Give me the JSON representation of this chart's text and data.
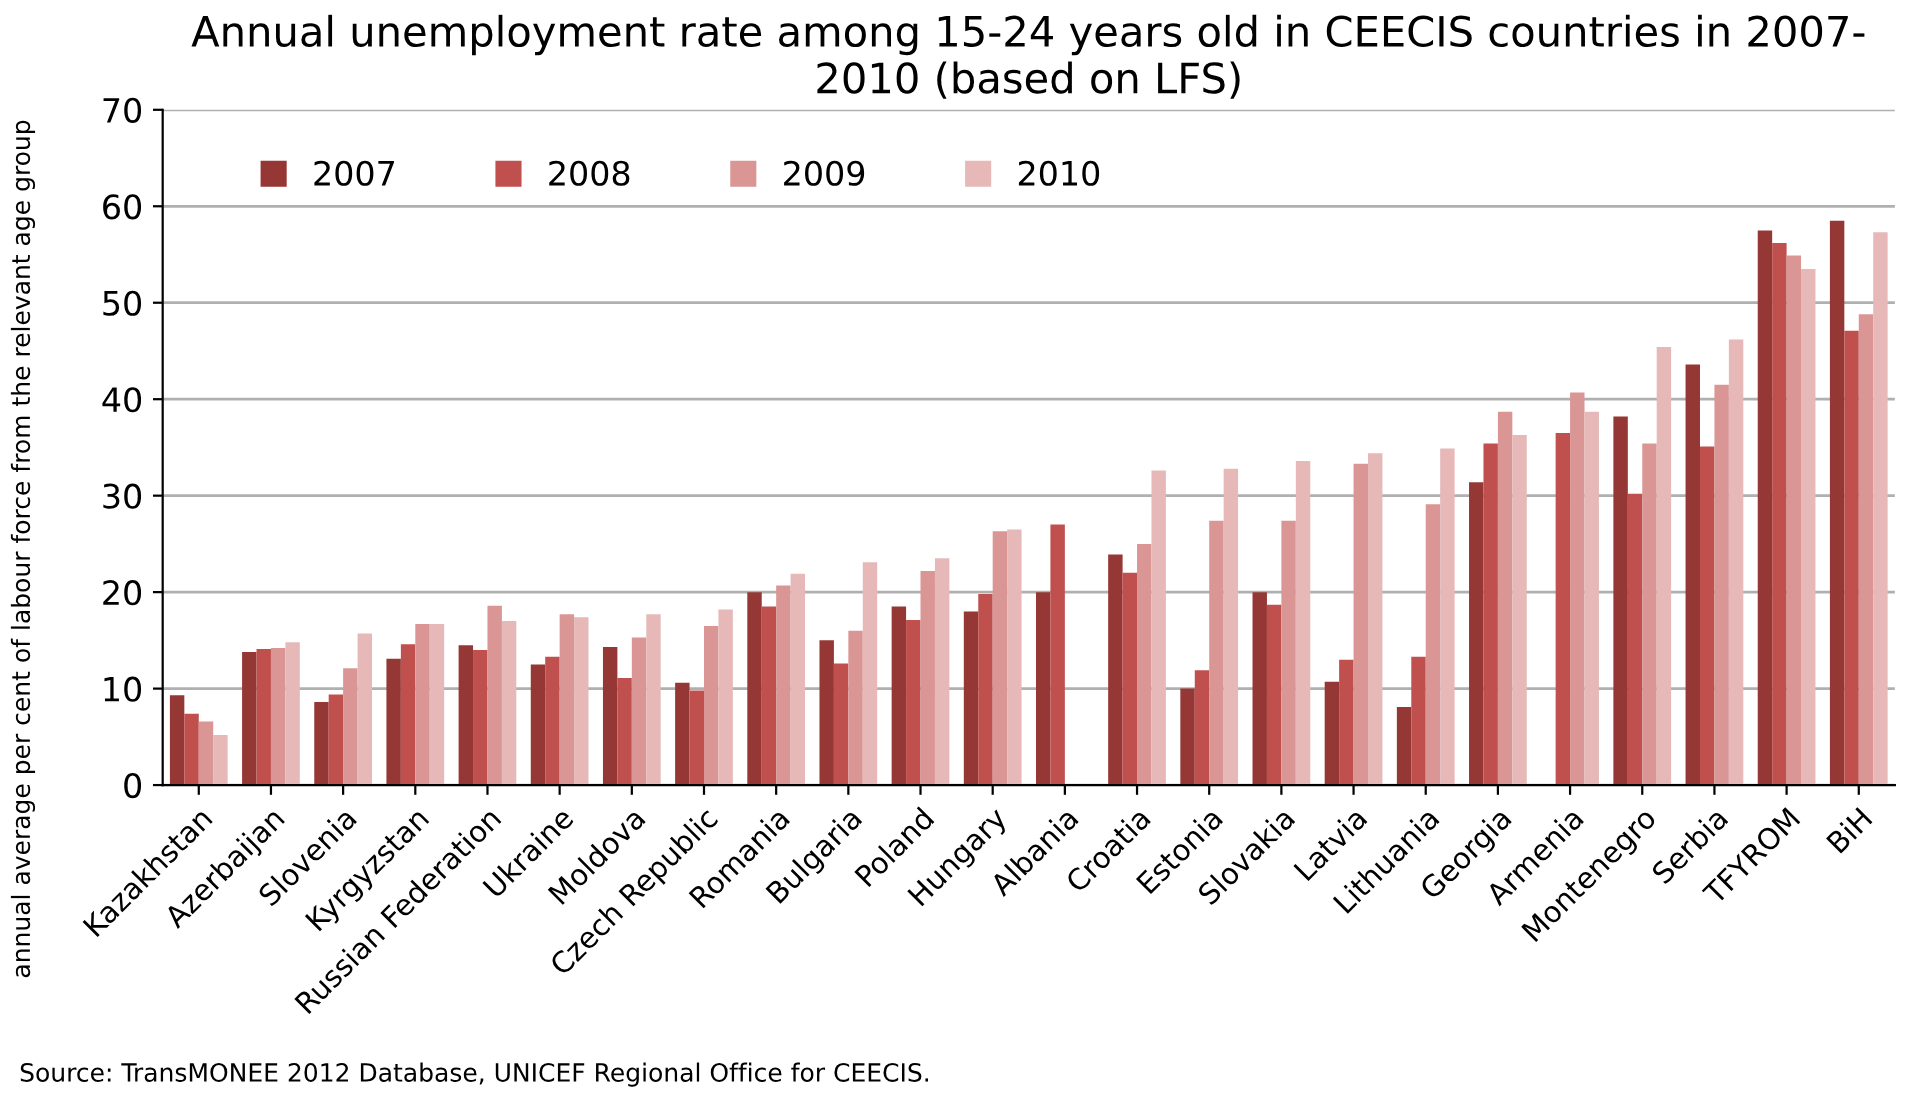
{
  "chart_data": {
    "type": "bar",
    "title": "Annual unemployment rate among 15-24 years old in CEECIS countries in 2007-\n2010 (based on LFS)",
    "ylabel": "annual average per cent of labour force from the relevant age group",
    "categories": [
      "Kazakhstan",
      "Azerbaijan",
      "Slovenia",
      "Kyrgyzstan",
      "Russian Federation",
      "Ukraine",
      "Moldova",
      "Czech Republic",
      "Romania",
      "Bulgaria",
      "Poland",
      "Hungary",
      "Albania",
      "Croatia",
      "Estonia",
      "Slovakia",
      "Latvia",
      "Lithuania",
      "Georgia",
      "Armenia",
      "Montenegro",
      "Serbia",
      "TFYROM",
      "BiH"
    ],
    "series": [
      {
        "name": "2007",
        "color": "#953735",
        "values": [
          9.3,
          13.8,
          8.6,
          13.1,
          14.5,
          12.5,
          14.3,
          10.6,
          20.0,
          15.0,
          18.5,
          18.0,
          20.0,
          23.9,
          10.0,
          20.0,
          10.7,
          8.1,
          31.4,
          null,
          38.2,
          43.6,
          57.5,
          58.5
        ]
      },
      {
        "name": "2008",
        "color": "#c0504d",
        "values": [
          7.4,
          14.1,
          9.4,
          14.6,
          14.0,
          13.3,
          11.1,
          9.8,
          18.5,
          12.6,
          17.1,
          19.8,
          27.0,
          22.0,
          11.9,
          18.7,
          13.0,
          13.3,
          35.4,
          36.5,
          30.2,
          35.1,
          56.2,
          47.1
        ]
      },
      {
        "name": "2009",
        "color": "#d99694",
        "values": [
          6.6,
          14.2,
          12.1,
          16.7,
          18.6,
          17.7,
          15.3,
          16.5,
          20.7,
          16.0,
          22.2,
          26.3,
          null,
          25.0,
          27.4,
          27.4,
          33.3,
          29.1,
          38.7,
          40.7,
          35.4,
          41.5,
          54.9,
          48.8
        ]
      },
      {
        "name": "2010",
        "color": "#e6b9b8",
        "values": [
          5.2,
          14.8,
          15.7,
          16.7,
          17.0,
          17.4,
          17.7,
          18.2,
          21.9,
          23.1,
          23.5,
          26.5,
          null,
          32.6,
          32.8,
          33.6,
          34.4,
          34.9,
          36.3,
          38.7,
          45.4,
          46.2,
          53.5,
          57.3
        ]
      }
    ],
    "ylim": [
      0,
      70
    ],
    "yticks": [
      0,
      10,
      20,
      30,
      40,
      50,
      60,
      70
    ],
    "grid": "y",
    "legend": "top left",
    "annotations": [
      "Source: TransMONEE 2012 Database, UNICEF Regional Office for CEECIS."
    ]
  }
}
